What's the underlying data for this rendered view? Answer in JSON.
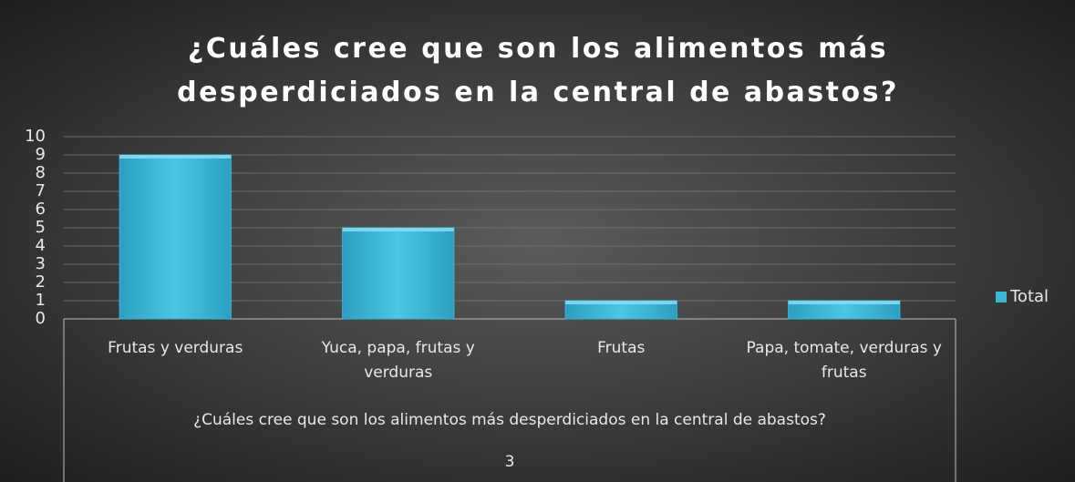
{
  "chart_data": {
    "type": "bar",
    "title": "¿Cuáles cree que son los alimentos más desperdiciados en la central de abastos?",
    "categories": [
      "Frutas y verduras",
      "Yuca, papa, frutas y verduras",
      "Frutas",
      "Papa, tomate, verduras y frutas"
    ],
    "series": [
      {
        "name": "Total",
        "color": "#3cb6d6",
        "values": [
          9,
          5,
          1,
          1
        ]
      }
    ],
    "group": {
      "label": "¿Cuáles cree que son los alimentos más desperdiciados en la central de abastos?",
      "sublabel": "3"
    },
    "ylim": [
      0,
      10
    ],
    "yticks": [
      0,
      1,
      2,
      3,
      4,
      5,
      6,
      7,
      8,
      9,
      10
    ],
    "grid": true,
    "legend": "right"
  }
}
